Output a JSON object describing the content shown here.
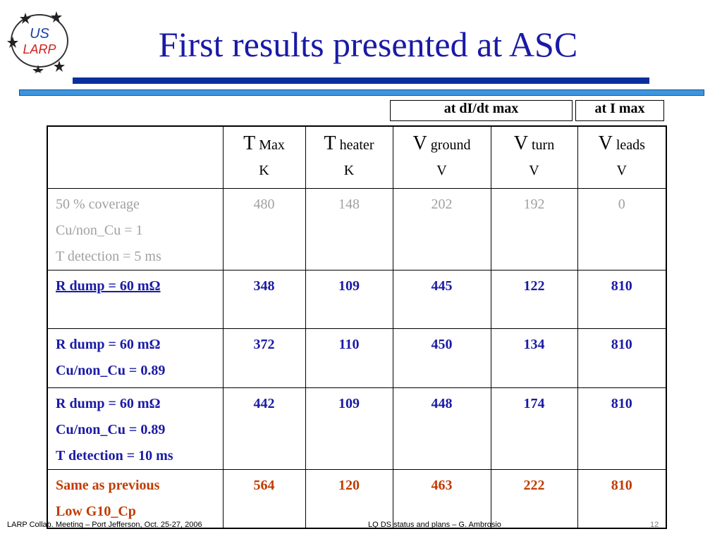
{
  "logo": {
    "top": "US",
    "bottom": "LARP"
  },
  "title": "First results presented at ASC",
  "column_groups": [
    "at dI/dt max",
    "at I max"
  ],
  "table": {
    "headers": [
      {
        "main": "T",
        "sub": "Max",
        "unit": "K"
      },
      {
        "main": "T",
        "sub": "heater",
        "unit": "K"
      },
      {
        "main": "V",
        "sub": "ground",
        "unit": "V"
      },
      {
        "main": "V",
        "sub": "turn",
        "unit": "V"
      },
      {
        "main": "V",
        "sub": "leads",
        "unit": "V"
      }
    ],
    "rows": [
      {
        "label": [
          "50 % coverage",
          "Cu/non_Cu = 1",
          "T detection = 5 ms"
        ],
        "values": [
          480,
          148,
          202,
          192,
          0
        ]
      },
      {
        "label": [
          "R dump = 60 mΩ"
        ],
        "values": [
          348,
          109,
          445,
          122,
          810
        ]
      },
      {
        "label": [
          "R dump = 60 mΩ",
          "Cu/non_Cu = 0.89"
        ],
        "values": [
          372,
          110,
          450,
          134,
          810
        ]
      },
      {
        "label": [
          "R dump = 60 mΩ",
          "Cu/non_Cu = 0.89",
          "T detection = 10 ms"
        ],
        "values": [
          442,
          109,
          448,
          174,
          810
        ]
      },
      {
        "label": [
          "Same as previous",
          "Low G10_Cp"
        ],
        "values": [
          564,
          120,
          463,
          222,
          810
        ]
      }
    ]
  },
  "footer": {
    "left": "LARP Collab. Meeting – Port Jefferson, Oct. 25-27, 2006",
    "center": "LQ DS status and plans – G. Ambrosio",
    "page": "12"
  }
}
